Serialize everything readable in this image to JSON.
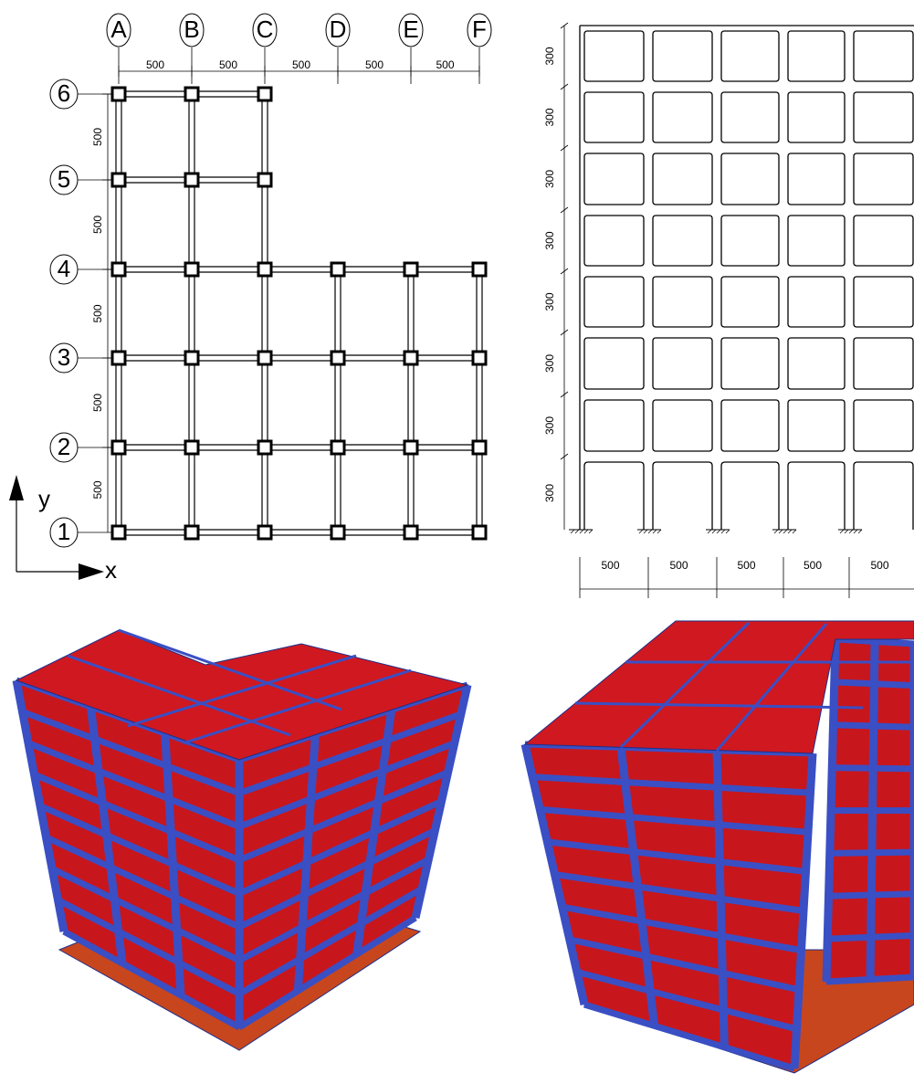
{
  "plan": {
    "column_labels": [
      "A",
      "B",
      "C",
      "D",
      "E",
      "F"
    ],
    "row_labels": [
      "6",
      "5",
      "4",
      "3",
      "2",
      "1"
    ],
    "x_spacings": [
      500,
      500,
      500,
      500,
      500
    ],
    "y_spacings": [
      500,
      500,
      500,
      500,
      500
    ],
    "axis_x": "x",
    "axis_y": "y"
  },
  "elevation": {
    "story_heights": [
      300,
      300,
      300,
      300,
      300,
      300,
      300,
      300
    ],
    "bay_widths": [
      500,
      500,
      500,
      500,
      500
    ]
  }
}
